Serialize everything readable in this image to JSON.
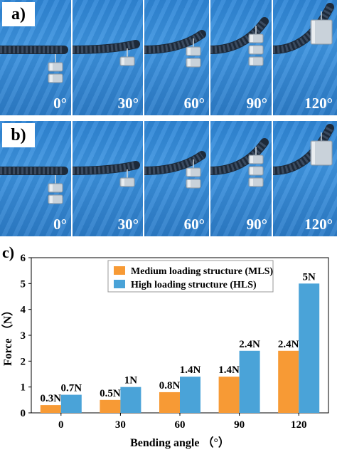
{
  "rows": [
    {
      "label": "a)",
      "angles": [
        "0°",
        "30°",
        "60°",
        "90°",
        "120°"
      ]
    },
    {
      "label": "b)",
      "angles": [
        "0°",
        "30°",
        "60°",
        "90°",
        "120°"
      ]
    }
  ],
  "chart_label": "c)",
  "chart_data": {
    "type": "bar",
    "categories": [
      "0",
      "30",
      "60",
      "90",
      "120"
    ],
    "series": [
      {
        "name": "Medium loading structure (MLS)",
        "values": [
          0.3,
          0.5,
          0.8,
          1.4,
          2.4
        ],
        "labels": [
          "0.3N",
          "0.5N",
          "0.8N",
          "1.4N",
          "2.4N"
        ],
        "color": "#f79a35"
      },
      {
        "name": "High loading structure (HLS)",
        "values": [
          0.7,
          1.0,
          1.4,
          2.4,
          5.0
        ],
        "labels": [
          "0.7N",
          "1N",
          "1.4N",
          "2.4N",
          "5N"
        ],
        "color": "#4aa3d8"
      }
    ],
    "xlabel": "Bending angle （°）",
    "ylabel": "Force （N）",
    "ylim": [
      0,
      6
    ],
    "yticks": [
      0,
      1,
      2,
      3,
      4,
      5,
      6
    ],
    "legend": "top-right",
    "grid": false
  }
}
